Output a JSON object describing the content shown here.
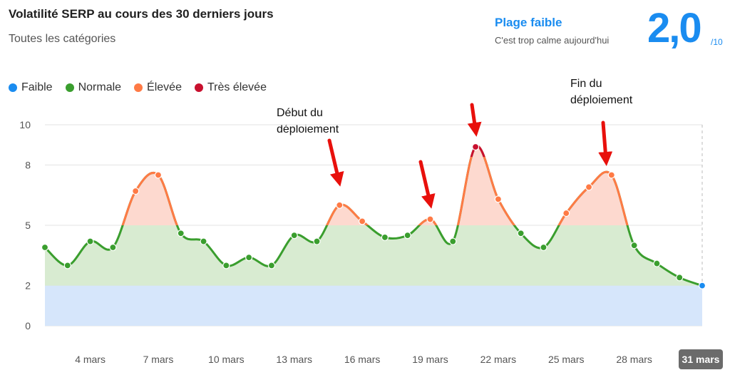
{
  "header": {
    "title": "Volatilité SERP au cours des 30 derniers jours",
    "subtitle": "Toutes les catégories",
    "range_label": "Plage faible",
    "range_desc": "C'est trop calme aujourd'hui",
    "score": "2,0",
    "score_max": "/10"
  },
  "legend": [
    {
      "label": "Faible",
      "color": "#1a8cf0"
    },
    {
      "label": "Normale",
      "color": "#3a9e2e"
    },
    {
      "label": "Élevée",
      "color": "#ff7a45"
    },
    {
      "label": "Très élevée",
      "color": "#c8102e"
    }
  ],
  "annotations": {
    "start": "Début du\ndéploiement",
    "end": "Fin du\ndéploiement"
  },
  "chart_data": {
    "type": "area",
    "title": "Volatilité SERP au cours des 30 derniers jours",
    "y_ticks": [
      0,
      2,
      5,
      8,
      10
    ],
    "ylim": [
      0,
      10
    ],
    "x_ticks": [
      "4 mars",
      "7 mars",
      "10 mars",
      "13 mars",
      "16 mars",
      "19 mars",
      "22 mars",
      "25 mars",
      "28 mars",
      "31 mars"
    ],
    "x_tick_indices": [
      2,
      5,
      8,
      11,
      14,
      17,
      20,
      23,
      26,
      29
    ],
    "highlighted_tick": "31 mars",
    "bands": [
      {
        "name": "Faible",
        "from": 0,
        "to": 2,
        "color": "#d6e6fb"
      },
      {
        "name": "Normale",
        "from": 2,
        "to": 5,
        "color": "#d8ebd1"
      },
      {
        "name": "Élevée",
        "from": 5,
        "to": 10,
        "color": "#fdd9cf"
      }
    ],
    "values": [
      3.9,
      3.0,
      4.2,
      3.9,
      6.7,
      7.5,
      4.6,
      4.2,
      3.0,
      3.4,
      3.0,
      4.5,
      4.2,
      6.0,
      5.2,
      4.4,
      4.5,
      5.3,
      4.2,
      8.9,
      6.3,
      4.6,
      3.9,
      5.6,
      6.9,
      7.5,
      4.0,
      3.1,
      2.4,
      2.0
    ],
    "grid": true
  }
}
